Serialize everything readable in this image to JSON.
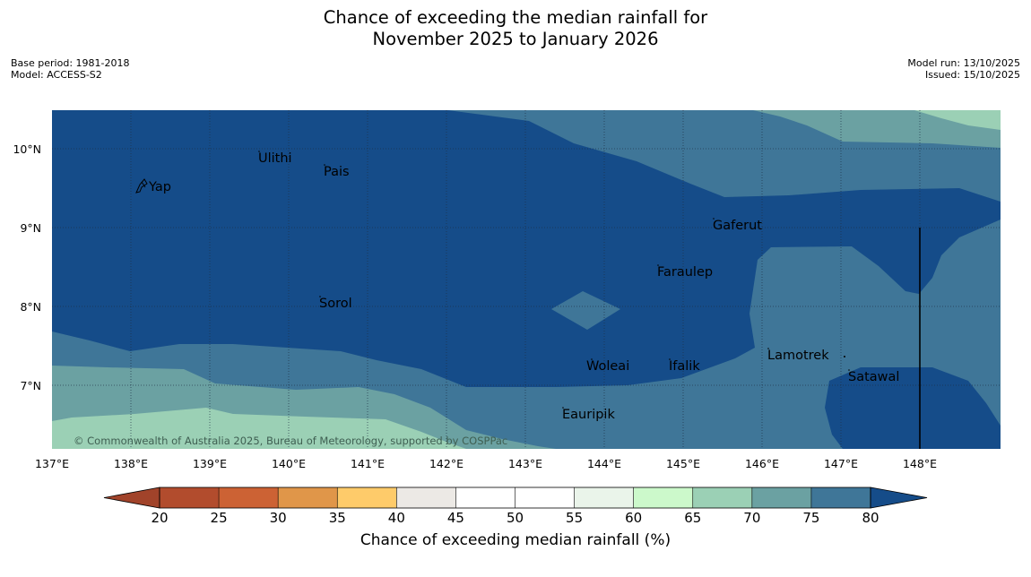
{
  "title": {
    "line1": "Chance of exceeding the median rainfall for",
    "line2": "November 2025 to January 2026"
  },
  "meta_left": {
    "base_period": "Base period: 1981-2018",
    "model": "Model: ACCESS-S2"
  },
  "meta_right": {
    "model_run": "Model run: 13/10/2025",
    "issued": "Issued: 15/10/2025"
  },
  "map": {
    "lon_range": [
      137,
      149
    ],
    "lat_range": [
      6.2,
      10.5
    ],
    "lon_ticks": [
      "137°E",
      "138°E",
      "139°E",
      "140°E",
      "141°E",
      "142°E",
      "143°E",
      "144°E",
      "145°E",
      "146°E",
      "147°E",
      "148°E"
    ],
    "lat_ticks": [
      "10°N",
      "9°N",
      "8°N",
      "7°N"
    ],
    "places": [
      "Yap",
      "Ulithi",
      "Pais",
      "Gaferut",
      "Faraulep",
      "Sorol",
      "Lamotrek",
      "Woleai",
      "Ifalik",
      "Satawal",
      "Eauripik"
    ],
    "copyright": "© Commonwealth of Australia 2025, Bureau of Meteorology, supported by COSPPac"
  },
  "colorbar": {
    "ticks": [
      "20",
      "25",
      "30",
      "35",
      "40",
      "45",
      "50",
      "55",
      "60",
      "65",
      "70",
      "75",
      "80"
    ],
    "colors": [
      "#a1432a",
      "#b24c2d",
      "#cc6234",
      "#e09649",
      "#fecb6a",
      "#ece9e5",
      "#ffffff",
      "#ffffff",
      "#eaf4ea",
      "#ccf9cb",
      "#9bd0b5",
      "#6ba1a2",
      "#3f7698",
      "#154c89"
    ],
    "label": "Chance of exceeding median rainfall (%)"
  },
  "legend_colors": {
    "c80": "#154c89",
    "c75": "#3f7698",
    "c70": "#6ba1a2",
    "c65": "#9bd0b5"
  }
}
